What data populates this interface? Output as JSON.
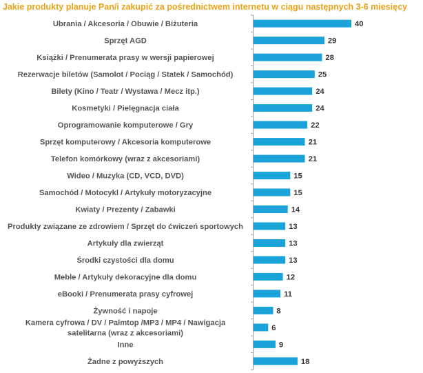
{
  "chart_data": {
    "type": "bar",
    "orientation": "horizontal",
    "title": "Jakie produkty planuje Pan/i zakupić za pośrednictwem internetu w ciągu następnych 3-6 miesięcy",
    "xlabel": "",
    "ylabel": "",
    "xlim": [
      0,
      40
    ],
    "grid": false,
    "bar_color": "#1aa3d9",
    "categories": [
      [
        "Ubrania / Akcesoria / Obuwie / Biżuteria"
      ],
      [
        "Sprzęt AGD"
      ],
      [
        "Książki / Prenumerata prasy w wersji papierowej"
      ],
      [
        "Rezerwacje biletów (Samolot / Pociąg / Statek / Samochód)"
      ],
      [
        "Bilety (Kino / Teatr / Wystawa / Mecz itp.)"
      ],
      [
        "Kosmetyki / Pielęgnacja ciała"
      ],
      [
        "Oprogramowanie komputerowe / Gry"
      ],
      [
        "Sprzęt komputerowy / Akcesoria komputerowe"
      ],
      [
        "Telefon komórkowy (wraz z akcesoriami)"
      ],
      [
        "Wideo / Muzyka (CD, VCD, DVD)"
      ],
      [
        "Samochód / Motocykl / Artykuły motoryzacyjne"
      ],
      [
        "Kwiaty / Prezenty / Zabawki"
      ],
      [
        "Produkty związane ze zdrowiem / Sprzęt do ćwiczeń sportowych"
      ],
      [
        "Artykuły dla zwierząt"
      ],
      [
        "Środki czystości dla domu"
      ],
      [
        "Meble / Artykuły dekoracyjne dla domu"
      ],
      [
        "eBooki / Prenumerata prasy cyfrowej"
      ],
      [
        "Żywność i napoje"
      ],
      [
        "Kamera cyfrowa / DV / Palmtop /MP3 / MP4 / Nawigacja",
        "satelitarna (wraz z akcesoriami)"
      ],
      [
        "Inne"
      ],
      [
        "Żadne z powyższych"
      ]
    ],
    "values": [
      40,
      29,
      28,
      25,
      24,
      24,
      22,
      21,
      21,
      15,
      15,
      14,
      13,
      13,
      13,
      12,
      11,
      8,
      6,
      9,
      18
    ]
  }
}
